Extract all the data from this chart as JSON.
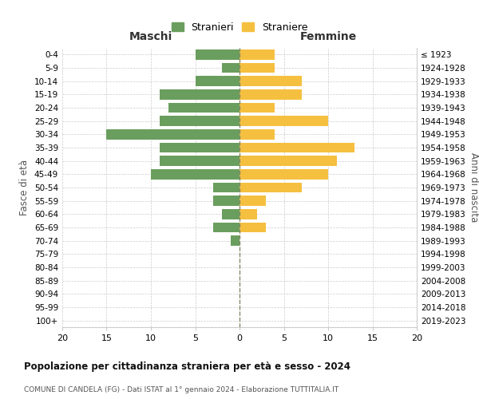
{
  "age_groups": [
    "0-4",
    "5-9",
    "10-14",
    "15-19",
    "20-24",
    "25-29",
    "30-34",
    "35-39",
    "40-44",
    "45-49",
    "50-54",
    "55-59",
    "60-64",
    "65-69",
    "70-74",
    "75-79",
    "80-84",
    "85-89",
    "90-94",
    "95-99",
    "100+"
  ],
  "birth_years": [
    "2019-2023",
    "2014-2018",
    "2009-2013",
    "2004-2008",
    "1999-2003",
    "1994-1998",
    "1989-1993",
    "1984-1988",
    "1979-1983",
    "1974-1978",
    "1969-1973",
    "1964-1968",
    "1959-1963",
    "1954-1958",
    "1949-1953",
    "1944-1948",
    "1939-1943",
    "1934-1938",
    "1929-1933",
    "1924-1928",
    "≤ 1923"
  ],
  "males": [
    5,
    2,
    5,
    9,
    8,
    9,
    15,
    9,
    9,
    10,
    3,
    3,
    2,
    3,
    1,
    0,
    0,
    0,
    0,
    0,
    0
  ],
  "females": [
    4,
    4,
    7,
    7,
    4,
    10,
    4,
    13,
    11,
    10,
    7,
    3,
    2,
    3,
    0,
    0,
    0,
    0,
    0,
    0,
    0
  ],
  "male_color": "#6a9e5e",
  "female_color": "#f5c040",
  "xlim": 20,
  "title": "Popolazione per cittadinanza straniera per età e sesso - 2024",
  "subtitle": "COMUNE DI CANDELA (FG) - Dati ISTAT al 1° gennaio 2024 - Elaborazione TUTTITALIA.IT",
  "xlabel_left": "Maschi",
  "xlabel_right": "Femmine",
  "ylabel_left": "Fasce di età",
  "ylabel_right": "Anni di nascita",
  "legend_male": "Stranieri",
  "legend_female": "Straniere",
  "background_color": "#ffffff",
  "grid_color": "#cccccc"
}
